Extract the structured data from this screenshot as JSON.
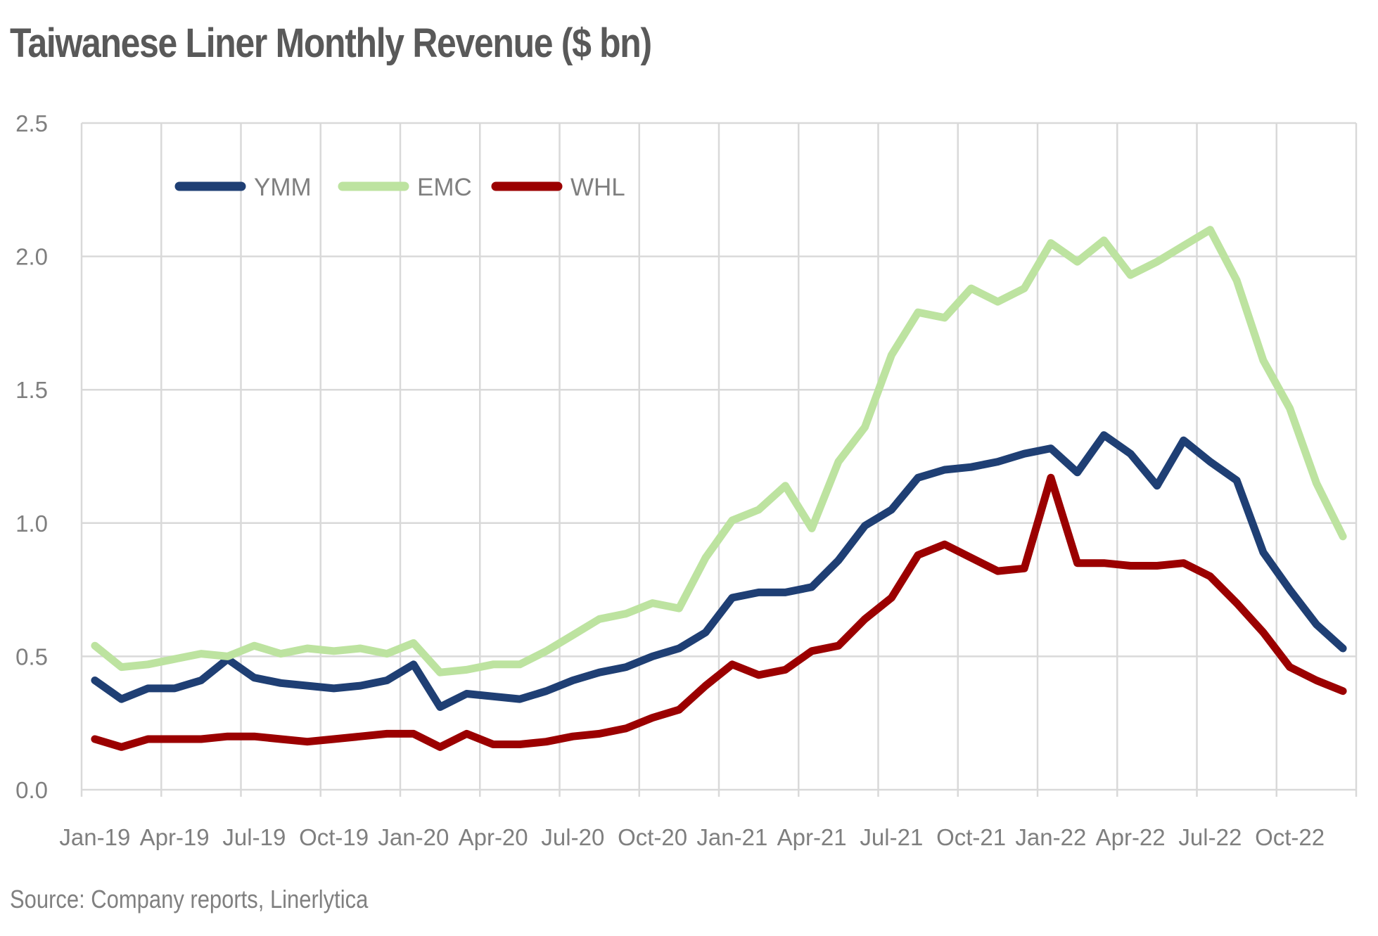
{
  "title": "Taiwanese Liner Monthly Revenue ($ bn)",
  "source": "Source: Company reports, Linerlytica",
  "chart_data": {
    "type": "line",
    "title": "Taiwanese Liner Monthly Revenue ($ bn)",
    "xlabel": "",
    "ylabel": "",
    "ylim": [
      0,
      2.5
    ],
    "yticks": [
      "0.0",
      "0.5",
      "1.0",
      "1.5",
      "2.0",
      "2.5"
    ],
    "x": [
      "Jan-19",
      "Feb-19",
      "Mar-19",
      "Apr-19",
      "May-19",
      "Jun-19",
      "Jul-19",
      "Aug-19",
      "Sep-19",
      "Oct-19",
      "Nov-19",
      "Dec-19",
      "Jan-20",
      "Feb-20",
      "Mar-20",
      "Apr-20",
      "May-20",
      "Jun-20",
      "Jul-20",
      "Aug-20",
      "Sep-20",
      "Oct-20",
      "Nov-20",
      "Dec-20",
      "Jan-21",
      "Feb-21",
      "Mar-21",
      "Apr-21",
      "May-21",
      "Jun-21",
      "Jul-21",
      "Aug-21",
      "Sep-21",
      "Oct-21",
      "Nov-21",
      "Dec-21",
      "Jan-22",
      "Feb-22",
      "Mar-22",
      "Apr-22",
      "May-22",
      "Jun-22",
      "Jul-22",
      "Aug-22",
      "Sep-22",
      "Oct-22",
      "Nov-22",
      "Dec-22"
    ],
    "xtick_labels": [
      "Jan-19",
      "Apr-19",
      "Jul-19",
      "Oct-19",
      "Jan-20",
      "Apr-20",
      "Jul-20",
      "Oct-20",
      "Jan-21",
      "Apr-21",
      "Jul-21",
      "Oct-21",
      "Jan-22",
      "Apr-22",
      "Jul-22",
      "Oct-22"
    ],
    "legend_position": "top-left",
    "grid": true,
    "series": [
      {
        "name": "YMM",
        "color": "#1f3f74",
        "values": [
          0.41,
          0.34,
          0.38,
          0.38,
          0.41,
          0.49,
          0.42,
          0.4,
          0.39,
          0.38,
          0.39,
          0.41,
          0.47,
          0.31,
          0.36,
          0.35,
          0.34,
          0.37,
          0.41,
          0.44,
          0.46,
          0.5,
          0.53,
          0.59,
          0.72,
          0.74,
          0.74,
          0.76,
          0.86,
          0.99,
          1.05,
          1.17,
          1.2,
          1.21,
          1.23,
          1.26,
          1.28,
          1.19,
          1.33,
          1.26,
          1.14,
          1.31,
          1.23,
          1.16,
          0.89,
          0.75,
          0.62,
          0.53
        ]
      },
      {
        "name": "EMC",
        "color": "#bde3a0",
        "values": [
          0.54,
          0.46,
          0.47,
          0.49,
          0.51,
          0.5,
          0.54,
          0.51,
          0.53,
          0.52,
          0.53,
          0.51,
          0.55,
          0.44,
          0.45,
          0.47,
          0.47,
          0.52,
          0.58,
          0.64,
          0.66,
          0.7,
          0.68,
          0.87,
          1.01,
          1.05,
          1.14,
          0.98,
          1.23,
          1.36,
          1.63,
          1.79,
          1.77,
          1.88,
          1.83,
          1.88,
          2.05,
          1.98,
          2.06,
          1.93,
          1.98,
          2.04,
          2.1,
          1.91,
          1.61,
          1.43,
          1.15,
          0.95
        ]
      },
      {
        "name": "WHL",
        "color": "#9b0000",
        "values": [
          0.19,
          0.16,
          0.19,
          0.19,
          0.19,
          0.2,
          0.2,
          0.19,
          0.18,
          0.19,
          0.2,
          0.21,
          0.21,
          0.16,
          0.21,
          0.17,
          0.17,
          0.18,
          0.2,
          0.21,
          0.23,
          0.27,
          0.3,
          0.39,
          0.47,
          0.43,
          0.45,
          0.52,
          0.54,
          0.64,
          0.72,
          0.88,
          0.92,
          0.87,
          0.82,
          0.83,
          1.17,
          0.85,
          0.85,
          0.84,
          0.84,
          0.85,
          0.8,
          0.7,
          0.59,
          0.46,
          0.41,
          0.37
        ]
      }
    ]
  }
}
